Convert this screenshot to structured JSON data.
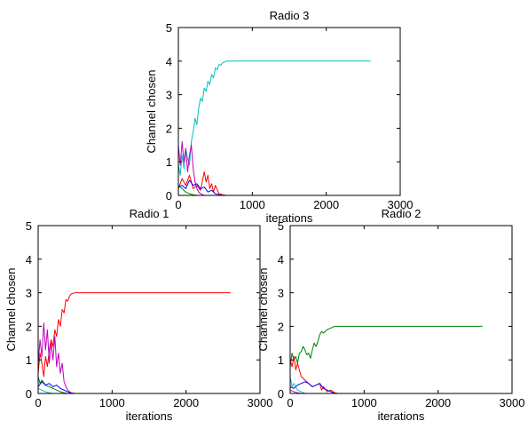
{
  "figure": {
    "background": "#ffffff"
  },
  "chart_data": [
    {
      "type": "line",
      "title": "Radio 3",
      "xlabel": "iterations",
      "ylabel": "Channel chosen",
      "xlim": [
        0,
        3000
      ],
      "ylim": [
        0,
        5
      ],
      "xticks": [
        0,
        1000,
        2000,
        3000
      ],
      "yticks": [
        0,
        1,
        2,
        3,
        4,
        5
      ],
      "xtick_labels": [
        "0",
        "1000",
        "2000",
        "3000"
      ],
      "ytick_labels": [
        "0",
        "1",
        "2",
        "3",
        "4",
        "5"
      ],
      "grid": false,
      "legend": "none",
      "series": [
        {
          "color": "#00bfbf",
          "x": [
            0,
            25,
            50,
            75,
            100,
            125,
            150,
            175,
            200,
            225,
            250,
            275,
            300,
            325,
            350,
            375,
            400,
            425,
            450,
            475,
            500,
            525,
            550,
            575,
            600,
            625,
            650,
            700,
            2600
          ],
          "y": [
            0.9,
            0.6,
            1.2,
            0.8,
            1.4,
            1.1,
            0.9,
            1.6,
            1.9,
            2.3,
            2.1,
            2.6,
            2.9,
            2.8,
            3.2,
            3.1,
            3.4,
            3.3,
            3.6,
            3.5,
            3.8,
            3.75,
            3.9,
            3.88,
            3.95,
            3.97,
            4.0,
            4.0,
            4.0
          ]
        },
        {
          "color": "#ff0000",
          "x": [
            0,
            50,
            100,
            150,
            200,
            250,
            300,
            350,
            375,
            400,
            425,
            450,
            475,
            500,
            550,
            600,
            650,
            700,
            2600
          ],
          "y": [
            0.2,
            0.5,
            0.3,
            0.6,
            0.2,
            0.3,
            0.15,
            0.7,
            0.4,
            0.6,
            0.2,
            0.35,
            0.1,
            0.3,
            0.05,
            0.02,
            0.0,
            0.0,
            0.0
          ]
        },
        {
          "color": "#bf00bf",
          "x": [
            0,
            25,
            50,
            75,
            100,
            125,
            150,
            175,
            200,
            225,
            250,
            275,
            300,
            350,
            400,
            2600
          ],
          "y": [
            1.5,
            0.9,
            1.6,
            1.0,
            1.4,
            0.7,
            1.2,
            1.5,
            0.8,
            0.4,
            0.2,
            0.1,
            0.05,
            0.0,
            0.0,
            0.0
          ]
        },
        {
          "color": "#0000ff",
          "x": [
            0,
            50,
            100,
            150,
            200,
            250,
            300,
            350,
            400,
            450,
            500,
            550,
            600,
            2600
          ],
          "y": [
            0.25,
            0.3,
            0.2,
            0.45,
            0.3,
            0.35,
            0.2,
            0.25,
            0.1,
            0.15,
            0.05,
            0.02,
            0.0,
            0.0
          ]
        },
        {
          "color": "#008000",
          "x": [
            0,
            50,
            100,
            150,
            200,
            250,
            2600
          ],
          "y": [
            0.3,
            0.2,
            0.1,
            0.05,
            0.02,
            0.0,
            0.0
          ]
        }
      ]
    },
    {
      "type": "line",
      "title": "Radio 1",
      "xlabel": "iterations",
      "ylabel": "Channel chosen",
      "xlim": [
        0,
        3000
      ],
      "ylim": [
        0,
        5
      ],
      "xticks": [
        0,
        1000,
        2000,
        3000
      ],
      "yticks": [
        0,
        1,
        2,
        3,
        4,
        5
      ],
      "xtick_labels": [
        "0",
        "1000",
        "2000",
        "3000"
      ],
      "ytick_labels": [
        "0",
        "1",
        "2",
        "3",
        "4",
        "5"
      ],
      "grid": false,
      "legend": "none",
      "series": [
        {
          "color": "#ff0000",
          "x": [
            0,
            25,
            50,
            75,
            100,
            125,
            150,
            175,
            200,
            225,
            250,
            275,
            300,
            325,
            350,
            375,
            400,
            425,
            450,
            500,
            550,
            2600
          ],
          "y": [
            0.6,
            1.2,
            0.9,
            0.5,
            1.1,
            0.8,
            1.3,
            1.6,
            1.4,
            1.9,
            1.7,
            2.2,
            2.0,
            2.5,
            2.4,
            2.8,
            2.75,
            2.9,
            2.97,
            3.0,
            3.0,
            3.0
          ]
        },
        {
          "color": "#bf00bf",
          "x": [
            0,
            25,
            50,
            75,
            100,
            125,
            150,
            175,
            200,
            225,
            250,
            275,
            300,
            325,
            350,
            375,
            400,
            425,
            450,
            500,
            2600
          ],
          "y": [
            0.9,
            1.6,
            1.1,
            2.1,
            1.3,
            1.9,
            0.9,
            1.5,
            1.0,
            1.7,
            0.8,
            1.2,
            0.6,
            0.9,
            0.35,
            0.2,
            0.1,
            0.05,
            0.02,
            0.0,
            0.0
          ]
        },
        {
          "color": "#008000",
          "x": [
            0,
            25,
            50,
            100,
            150,
            200,
            250,
            300,
            350,
            400,
            2600
          ],
          "y": [
            0.5,
            0.3,
            0.4,
            0.25,
            0.2,
            0.15,
            0.1,
            0.05,
            0.02,
            0.0,
            0.0
          ]
        },
        {
          "color": "#0000ff",
          "x": [
            0,
            50,
            100,
            150,
            200,
            250,
            300,
            350,
            400,
            450,
            2600
          ],
          "y": [
            0.2,
            0.35,
            0.25,
            0.3,
            0.2,
            0.25,
            0.15,
            0.1,
            0.05,
            0.0,
            0.0
          ]
        },
        {
          "color": "#00bfbf",
          "x": [
            0,
            50,
            100,
            150,
            200,
            2600
          ],
          "y": [
            0.15,
            0.1,
            0.05,
            0.02,
            0.0,
            0.0
          ]
        }
      ]
    },
    {
      "type": "line",
      "title": "Radio 2",
      "xlabel": "iterations",
      "ylabel": "Channel chosen",
      "xlim": [
        0,
        3000
      ],
      "ylim": [
        0,
        5
      ],
      "xticks": [
        0,
        1000,
        2000,
        3000
      ],
      "yticks": [
        0,
        1,
        2,
        3,
        4,
        5
      ],
      "xtick_labels": [
        "0",
        "1000",
        "2000",
        "3000"
      ],
      "ytick_labels": [
        "0",
        "1",
        "2",
        "3",
        "4",
        "5"
      ],
      "grid": false,
      "legend": "none",
      "series": [
        {
          "color": "#008000",
          "x": [
            0,
            25,
            50,
            75,
            100,
            125,
            150,
            175,
            200,
            225,
            250,
            275,
            300,
            325,
            350,
            375,
            400,
            425,
            450,
            500,
            550,
            600,
            650,
            700,
            2600
          ],
          "y": [
            0.8,
            1.2,
            1.0,
            1.1,
            0.9,
            1.2,
            1.25,
            1.4,
            1.3,
            1.15,
            1.2,
            1.05,
            1.3,
            1.5,
            1.4,
            1.55,
            1.75,
            1.85,
            1.8,
            1.9,
            1.95,
            2.0,
            2.0,
            2.0,
            2.0
          ]
        },
        {
          "color": "#ff0000",
          "x": [
            0,
            25,
            50,
            75,
            100,
            150,
            200,
            250,
            300,
            350,
            400,
            425,
            450,
            500,
            550,
            600,
            650,
            2600
          ],
          "y": [
            1.0,
            0.8,
            1.1,
            0.7,
            0.9,
            0.5,
            0.4,
            0.3,
            0.2,
            0.25,
            0.3,
            0.1,
            0.2,
            0.05,
            0.1,
            0.02,
            0.0,
            0.0
          ]
        },
        {
          "color": "#0000ff",
          "x": [
            0,
            50,
            100,
            150,
            200,
            250,
            300,
            350,
            400,
            450,
            500,
            550,
            600,
            2600
          ],
          "y": [
            0.2,
            0.15,
            0.25,
            0.3,
            0.35,
            0.3,
            0.2,
            0.25,
            0.3,
            0.15,
            0.1,
            0.05,
            0.0,
            0.0
          ]
        },
        {
          "color": "#00bfbf",
          "x": [
            0,
            25,
            50,
            100,
            150,
            200,
            2600
          ],
          "y": [
            0.5,
            0.2,
            0.3,
            0.1,
            0.05,
            0.0,
            0.0
          ]
        },
        {
          "color": "#bf00bf",
          "x": [
            0,
            50,
            100,
            150,
            2600
          ],
          "y": [
            0.1,
            0.05,
            0.02,
            0.0,
            0.0
          ]
        }
      ]
    }
  ]
}
